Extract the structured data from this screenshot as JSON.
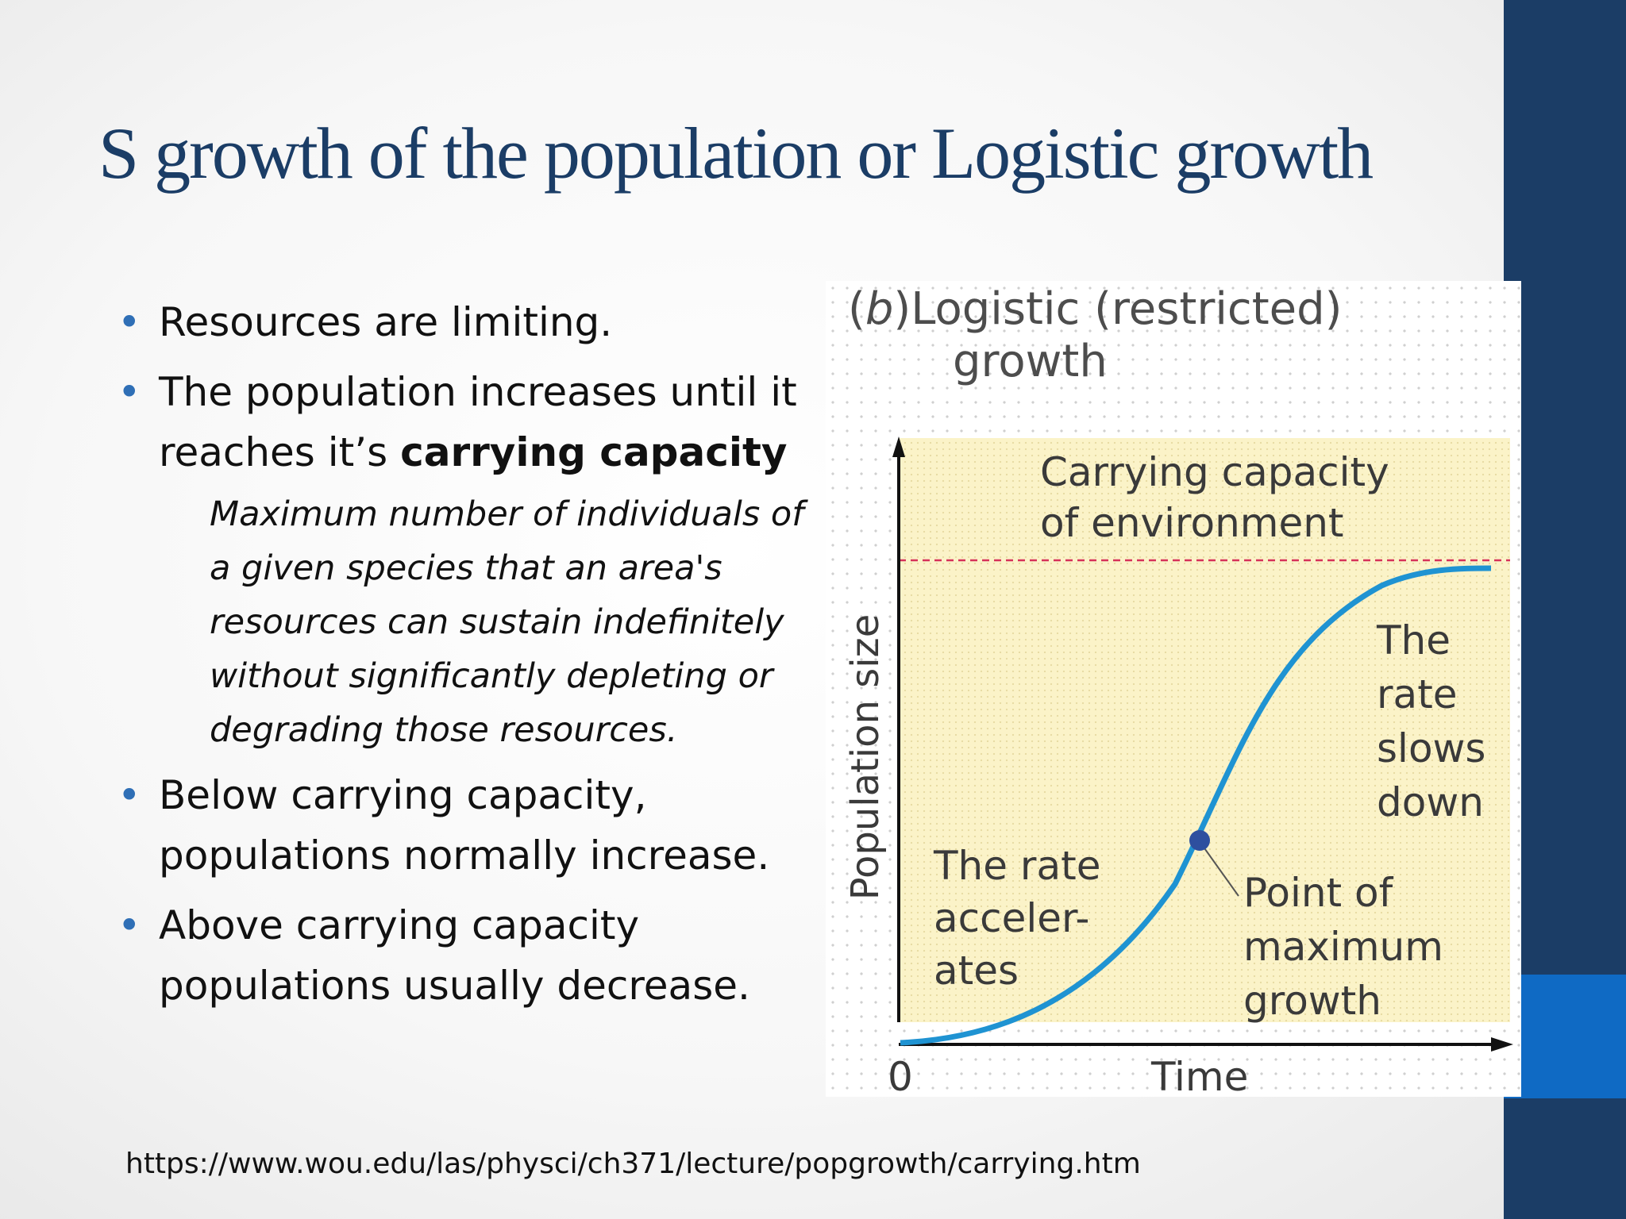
{
  "slide": {
    "title": "S growth of the population or Logistic growth",
    "bullets": [
      {
        "text": "Resources are limiting."
      },
      {
        "text": "The population increases until it reaches it’s ",
        "bold": "carrying capacity"
      },
      {
        "text": "Below carrying capacity, populations normally increase."
      },
      {
        "text": "Above carrying capacity populations usually decrease."
      }
    ],
    "definition": "Maximum number of individuals of a given species that an area's resources can sustain indefinitely without significantly depleting or degrading those resources.",
    "source": "https://www.wou.edu/las/physci/ch371/lecture/popgrowth/carrying.htm",
    "bullet_glyph": "•",
    "colors": {
      "title": "#1b3d66",
      "bullet": "#2f6fb6",
      "side_bar": "#1b3d66",
      "side_accent": "#0f6ac4"
    }
  },
  "figure": {
    "heading_prefix": "(",
    "heading_letter": "b",
    "heading_rest": ")Logistic (restricted)",
    "heading_line2": "growth",
    "carrying_line1": "Carrying capacity",
    "carrying_line2": "of environment",
    "y_axis_label": "Population size",
    "x_axis_label": "Time",
    "origin_label": "0",
    "accel_lines": [
      "The rate",
      "acceler-",
      "ates"
    ],
    "slow_lines": [
      "The",
      "rate",
      "slows",
      "down"
    ],
    "max_lines": [
      "Point of",
      "maximum",
      "growth"
    ],
    "colors": {
      "curve": "#1f93d2",
      "carrying_line": "#d6325a",
      "plot_bg": "#fbf3c8",
      "point": "#2e4f9f"
    }
  }
}
